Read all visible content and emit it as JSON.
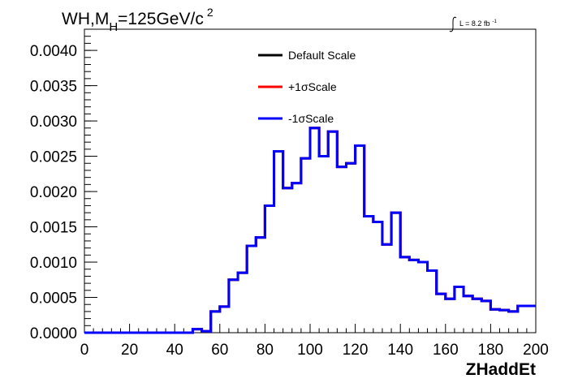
{
  "chart_data": {
    "type": "line",
    "title": {
      "main": "WH,M",
      "sub": "H",
      "mid": "=125GeV/c",
      "sup": "2"
    },
    "lumi": {
      "prefix": "L = 8.2 fb",
      "sup": "-1"
    },
    "xlabel": "ZHaddEt",
    "ylabel": "",
    "xlim": [
      0,
      200
    ],
    "ylim": [
      0,
      0.0043
    ],
    "x_ticks": [
      "0",
      "20",
      "40",
      "60",
      "80",
      "100",
      "120",
      "140",
      "160",
      "180",
      "200"
    ],
    "y_ticks": [
      "0.0000",
      "0.0005",
      "0.0010",
      "0.0015",
      "0.0020",
      "0.0025",
      "0.0030",
      "0.0035",
      "0.0040"
    ],
    "bin_edges": [
      0,
      4,
      8,
      12,
      16,
      20,
      24,
      28,
      32,
      36,
      40,
      44,
      48,
      52,
      56,
      60,
      64,
      68,
      72,
      76,
      80,
      84,
      88,
      92,
      96,
      100,
      104,
      108,
      112,
      116,
      120,
      124,
      128,
      132,
      136,
      140,
      144,
      148,
      152,
      156,
      160,
      164,
      168,
      172,
      176,
      180,
      184,
      188,
      192,
      196,
      200
    ],
    "legend": {
      "placement": "top-center",
      "entries": [
        {
          "label": "Default Scale",
          "color": "#000000"
        },
        {
          "label": "+1σScale",
          "color": "#ff0000"
        },
        {
          "label": "-1σScale",
          "color": "#0000ff"
        }
      ]
    },
    "series": [
      {
        "name": "Default Scale",
        "color": "#000000",
        "values": [
          0,
          0,
          0,
          0,
          0,
          0,
          0,
          0,
          0,
          0,
          0,
          0,
          5e-05,
          2e-05,
          0.0003,
          0.00037,
          0.00075,
          0.00085,
          0.00123,
          0.00135,
          0.0018,
          0.00257,
          0.00205,
          0.00212,
          0.00247,
          0.0029,
          0.0025,
          0.00285,
          0.00235,
          0.0024,
          0.00265,
          0.00165,
          0.00157,
          0.00125,
          0.0017,
          0.00107,
          0.00103,
          0.001,
          0.00088,
          0.00055,
          0.00048,
          0.00065,
          0.00052,
          0.00048,
          0.00045,
          0.00033,
          0.00032,
          0.0003,
          0.00038,
          0.00038
        ]
      },
      {
        "name": "+1σScale",
        "color": "#ff0000",
        "values": [
          0,
          0,
          0,
          0,
          0,
          0,
          0,
          0,
          0,
          0,
          0,
          0,
          5e-05,
          2e-05,
          0.0003,
          0.00037,
          0.00075,
          0.00085,
          0.00123,
          0.00135,
          0.0018,
          0.00257,
          0.00205,
          0.00212,
          0.00247,
          0.0029,
          0.0025,
          0.00285,
          0.00235,
          0.0024,
          0.00265,
          0.00165,
          0.00157,
          0.00125,
          0.0017,
          0.00107,
          0.00103,
          0.001,
          0.00088,
          0.00055,
          0.00048,
          0.00065,
          0.00052,
          0.00048,
          0.00045,
          0.00033,
          0.00032,
          0.0003,
          0.00038,
          0.00038
        ]
      },
      {
        "name": "-1σScale",
        "color": "#0000ff",
        "values": [
          0,
          0,
          0,
          0,
          0,
          0,
          0,
          0,
          0,
          0,
          0,
          0,
          5e-05,
          2e-05,
          0.0003,
          0.00037,
          0.00075,
          0.00085,
          0.00123,
          0.00135,
          0.0018,
          0.00257,
          0.00205,
          0.00212,
          0.00247,
          0.0029,
          0.0025,
          0.00285,
          0.00235,
          0.0024,
          0.00265,
          0.00165,
          0.00157,
          0.00125,
          0.0017,
          0.00107,
          0.00103,
          0.001,
          0.00088,
          0.00055,
          0.00048,
          0.00065,
          0.00052,
          0.00048,
          0.00045,
          0.00033,
          0.00032,
          0.0003,
          0.00038,
          0.00038
        ]
      }
    ]
  }
}
